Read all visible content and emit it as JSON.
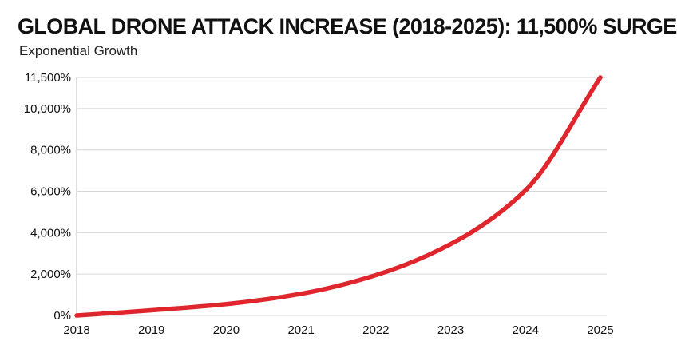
{
  "chart_data": {
    "type": "line",
    "title": "GLOBAL DRONE ATTACK INCREASE (2018-2025): 11,500% SURGE",
    "subtitle": "Exponential Growth",
    "xlabel": "",
    "ylabel": "",
    "x": [
      2018,
      2019,
      2020,
      2021,
      2022,
      2023,
      2024,
      2025
    ],
    "series": [
      {
        "values": [
          0,
          250,
          550,
          1050,
          1950,
          3450,
          6050,
          11500
        ]
      }
    ],
    "xlim": [
      2018,
      2025
    ],
    "ylim": [
      0,
      11500
    ],
    "y_ticks": [
      0,
      2000,
      4000,
      6000,
      8000,
      10000,
      11500
    ],
    "y_tick_labels": [
      "0%",
      "2,000%",
      "4,000%",
      "6,000%",
      "8,000%",
      "10,000%",
      "11,500%"
    ],
    "x_tick_labels": [
      "2018",
      "2019",
      "2020",
      "2021",
      "2022",
      "2023",
      "2024",
      "2025"
    ],
    "grid": true,
    "legend": "none",
    "line_color": "#e0262d",
    "grid_color": "#d6d6d6"
  }
}
